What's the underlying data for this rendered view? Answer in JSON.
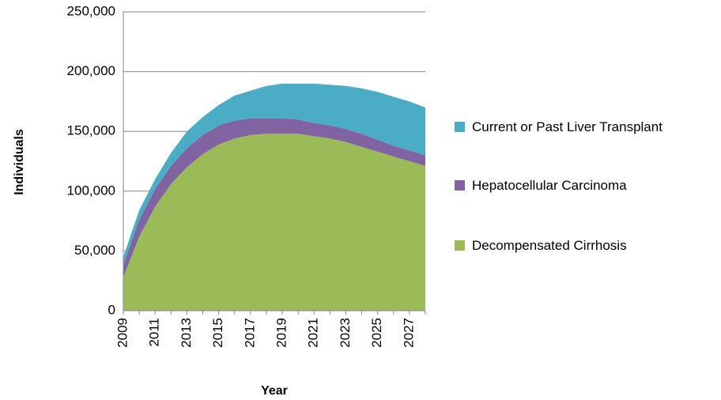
{
  "chart_data": {
    "type": "stacked_area",
    "x_label": "Year",
    "y_label": "Individuals",
    "x": [
      2009,
      2010,
      2011,
      2012,
      2013,
      2014,
      2015,
      2016,
      2017,
      2018,
      2019,
      2020,
      2021,
      2022,
      2023,
      2024,
      2025,
      2026,
      2027,
      2028
    ],
    "xlim": [
      2009,
      2028
    ],
    "xticks": [
      2009,
      2011,
      2013,
      2015,
      2017,
      2019,
      2021,
      2023,
      2025,
      2027
    ],
    "ylim": [
      0,
      250000
    ],
    "yticks": [
      0,
      {
        "value": 50000,
        "label": "50,000"
      },
      {
        "value": 100000,
        "label": "100,000"
      },
      {
        "value": 150000,
        "label": "150,000"
      },
      {
        "value": 200000,
        "label": "200,000"
      },
      {
        "value": 250000,
        "label": "250,000"
      }
    ],
    "grid": true,
    "series": [
      {
        "name": "Decompensated Cirrhosis",
        "color": "#9bbb59",
        "values": [
          28000,
          62000,
          87000,
          106000,
          120000,
          131000,
          139000,
          144000,
          147000,
          148000,
          148000,
          148000,
          146000,
          144000,
          141000,
          137000,
          133000,
          129000,
          125000,
          121000
        ]
      },
      {
        "name": "Hepatocellular Carcinoma",
        "color": "#8064a2",
        "values": [
          10000,
          14000,
          15000,
          15000,
          16000,
          16000,
          16000,
          15000,
          14000,
          13000,
          13000,
          12000,
          11000,
          11000,
          11000,
          11000,
          10000,
          9000,
          9000,
          9000
        ]
      },
      {
        "name": "Current or Past Liver Transplant",
        "color": "#4bacc6",
        "values": [
          7000,
          8000,
          8000,
          11000,
          14000,
          15000,
          17000,
          21000,
          23000,
          27000,
          29000,
          30000,
          33000,
          34000,
          36000,
          38000,
          40000,
          41000,
          41000,
          40000
        ]
      }
    ]
  }
}
